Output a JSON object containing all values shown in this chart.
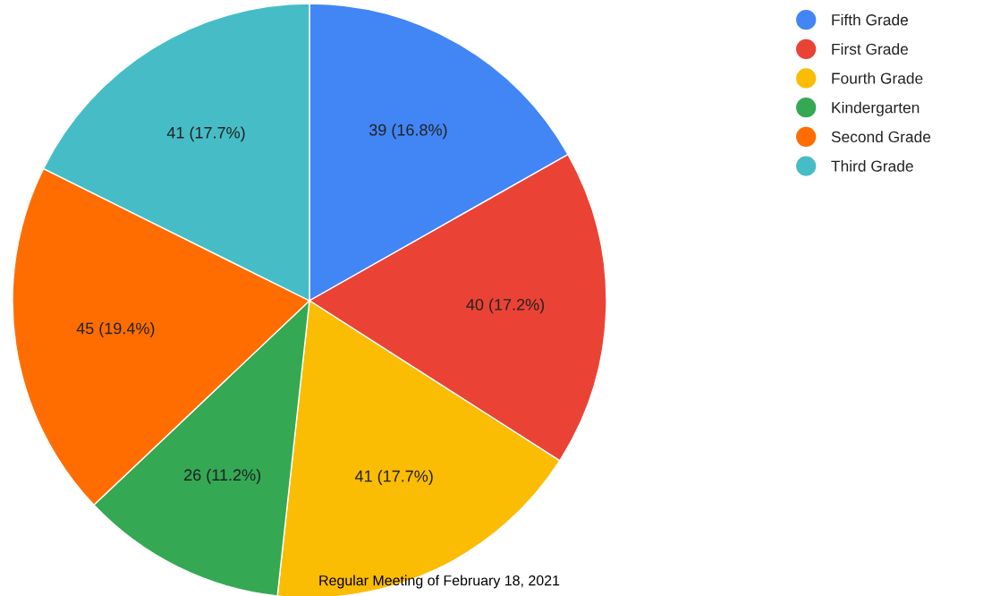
{
  "chart_data": {
    "type": "pie",
    "categories": [
      "Fifth Grade",
      "First Grade",
      "Fourth Grade",
      "Kindergarten",
      "Second Grade",
      "Third Grade"
    ],
    "values": [
      39,
      40,
      41,
      26,
      45,
      41
    ],
    "colors": [
      "#4285f4",
      "#ea4335",
      "#fbbc04",
      "#34a853",
      "#ff6d01",
      "#46bdc6"
    ],
    "value_labels": [
      "39 (16.8%)",
      "40 (17.2%)",
      "41 (17.7%)",
      "26 (11.2%)",
      "45 (19.4%)",
      "41 (17.7%)"
    ],
    "legend": "right",
    "annotations": [
      "Regular Meeting of February 18, 2021"
    ]
  }
}
